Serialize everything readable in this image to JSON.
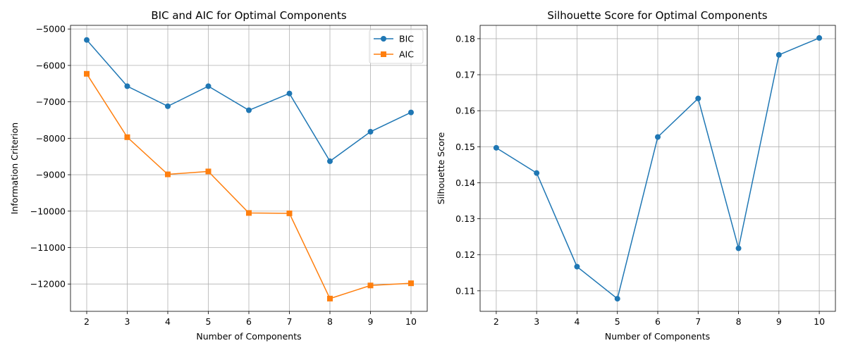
{
  "chart_data": [
    {
      "type": "line",
      "title": "BIC and AIC for Optimal Components",
      "xlabel": "Number of Components",
      "ylabel": "Information Criterion",
      "x": [
        2,
        3,
        4,
        5,
        6,
        7,
        8,
        9,
        10
      ],
      "xlim": [
        1.6,
        10.4
      ],
      "ylim": [
        -12750,
        -4900
      ],
      "xticks": [
        2,
        3,
        4,
        5,
        6,
        7,
        8,
        9,
        10
      ],
      "yticks": [
        -12000,
        -11000,
        -10000,
        -9000,
        -8000,
        -7000,
        -6000,
        -5000
      ],
      "ytick_labels": [
        "−12000",
        "−11000",
        "−10000",
        "−9000",
        "−8000",
        "−7000",
        "−6000",
        "−5000"
      ],
      "grid": true,
      "legend_position": "upper right",
      "series": [
        {
          "name": "BIC",
          "color": "#1f77b4",
          "marker": "circle",
          "values": [
            -5300,
            -6570,
            -7120,
            -6570,
            -7230,
            -6770,
            -8630,
            -7820,
            -7290
          ]
        },
        {
          "name": "AIC",
          "color": "#ff7f0e",
          "marker": "square",
          "values": [
            -6230,
            -7970,
            -8990,
            -8910,
            -10050,
            -10060,
            -12400,
            -12040,
            -11980
          ]
        }
      ]
    },
    {
      "type": "line",
      "title": "Silhouette Score for Optimal Components",
      "xlabel": "Number of Components",
      "ylabel": "Silhouette Score",
      "x": [
        2,
        3,
        4,
        5,
        6,
        7,
        8,
        9,
        10
      ],
      "xlim": [
        1.6,
        10.4
      ],
      "ylim": [
        0.1043,
        0.1837
      ],
      "xticks": [
        2,
        3,
        4,
        5,
        6,
        7,
        8,
        9,
        10
      ],
      "yticks": [
        0.11,
        0.12,
        0.13,
        0.14,
        0.15,
        0.16,
        0.17,
        0.18
      ],
      "ytick_labels": [
        "0.11",
        "0.12",
        "0.13",
        "0.14",
        "0.15",
        "0.16",
        "0.17",
        "0.18"
      ],
      "grid": true,
      "series": [
        {
          "color": "#1f77b4",
          "marker": "circle",
          "values": [
            0.1497,
            0.1427,
            0.1167,
            0.1078,
            0.1527,
            0.1634,
            0.1218,
            0.1755,
            0.1802
          ]
        }
      ]
    }
  ]
}
